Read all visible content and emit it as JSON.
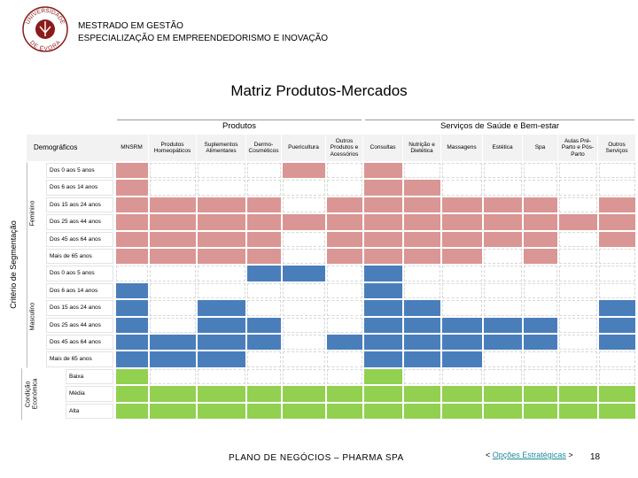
{
  "header": {
    "logo_top": "UNIVERSIDADE",
    "logo_bottom": "DE ÉVORA",
    "line1": "MESTRADO EM GESTÃO",
    "line2": "ESPECIALIZAÇÃO EM EMPREENDEDORISMO E INOVAÇÃO"
  },
  "title": "Matriz Produtos-Mercados",
  "matrix": {
    "corner": "Demográficos",
    "axis_label": "Critério de Segmentação",
    "column_groups": [
      {
        "label": "Produtos",
        "columns": [
          "MNSRM",
          "Produtos Homeopáticos",
          "Suplementos Alimentares",
          "Dermo-Cosméticos",
          "Puericultura",
          "Outros Produtos e Acessórios"
        ]
      },
      {
        "label": "Serviços de Saúde e Bem-estar",
        "columns": [
          "Consultas",
          "Nutrição e Dietética",
          "Massagens",
          "Estética",
          "Spa",
          "Aulas Pré-Parto e Pós-Parto",
          "Outros Serviços"
        ]
      }
    ],
    "row_groups": [
      {
        "label": "Feminino",
        "color": "#d99694",
        "rows": [
          {
            "label": "Dos 0 aos 5 anos",
            "cells": [
              1,
              0,
              0,
              0,
              1,
              0,
              1,
              0,
              0,
              0,
              0,
              0,
              0
            ]
          },
          {
            "label": "Dos 6 aos 14 anos",
            "cells": [
              1,
              0,
              0,
              0,
              0,
              0,
              1,
              1,
              0,
              0,
              0,
              0,
              0
            ]
          },
          {
            "label": "Dos 15 aos 24 anos",
            "cells": [
              1,
              1,
              1,
              1,
              0,
              1,
              1,
              1,
              1,
              1,
              1,
              0,
              1
            ]
          },
          {
            "label": "Dos 25 aos 44 anos",
            "cells": [
              1,
              1,
              1,
              1,
              1,
              1,
              1,
              1,
              1,
              1,
              1,
              1,
              1
            ]
          },
          {
            "label": "Dos 45 aos 64 anos",
            "cells": [
              1,
              1,
              1,
              1,
              0,
              1,
              1,
              1,
              1,
              1,
              1,
              0,
              1
            ]
          },
          {
            "label": "Mais de 65 anos",
            "cells": [
              1,
              1,
              1,
              1,
              0,
              1,
              1,
              1,
              1,
              0,
              1,
              0,
              0
            ]
          }
        ]
      },
      {
        "label": "Masculino",
        "color": "#4a7ebb",
        "rows": [
          {
            "label": "Dos 0 aos 5 anos",
            "cells": [
              0,
              0,
              0,
              1,
              1,
              0,
              1,
              0,
              0,
              0,
              0,
              0,
              0
            ]
          },
          {
            "label": "Dos 6 aos 14 anos",
            "cells": [
              1,
              0,
              0,
              0,
              0,
              0,
              1,
              0,
              0,
              0,
              0,
              0,
              0
            ]
          },
          {
            "label": "Dos 15 aos 24 anos",
            "cells": [
              1,
              0,
              1,
              0,
              0,
              0,
              1,
              1,
              0,
              0,
              0,
              0,
              1
            ]
          },
          {
            "label": "Dos 25 aos 44 anos",
            "cells": [
              1,
              0,
              1,
              1,
              0,
              0,
              1,
              1,
              1,
              1,
              1,
              0,
              1
            ]
          },
          {
            "label": "Dos 45 aos 64 anos",
            "cells": [
              1,
              1,
              1,
              1,
              0,
              1,
              1,
              1,
              1,
              1,
              1,
              0,
              1
            ]
          },
          {
            "label": "Mais de 65 anos",
            "cells": [
              1,
              1,
              1,
              0,
              0,
              0,
              1,
              1,
              1,
              0,
              0,
              0,
              0
            ]
          }
        ]
      },
      {
        "label": "Condição Económica",
        "color": "#92d050",
        "rows": [
          {
            "label": "Baixa",
            "cells": [
              1,
              0,
              0,
              0,
              0,
              0,
              1,
              0,
              0,
              0,
              0,
              0,
              0
            ]
          },
          {
            "label": "Média",
            "cells": [
              1,
              1,
              1,
              1,
              1,
              1,
              1,
              1,
              1,
              1,
              1,
              1,
              1
            ]
          },
          {
            "label": "Alta",
            "cells": [
              1,
              1,
              1,
              1,
              1,
              1,
              1,
              1,
              1,
              1,
              1,
              1,
              1
            ]
          }
        ]
      }
    ]
  },
  "footer": {
    "plan": "PLANO DE NEGÓCIOS – PHARMA SPA",
    "nav_prev": "<",
    "nav_link": "Opções Estratégicas",
    "nav_next": ">",
    "page": "18"
  }
}
